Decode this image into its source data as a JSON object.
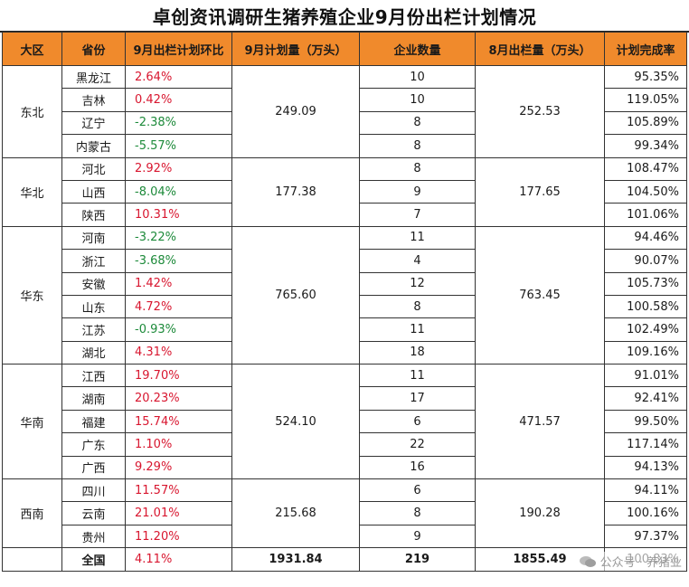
{
  "title": "卓创资讯调研生猪养殖企业9月份出栏计划情况",
  "headers": [
    "大区",
    "省份",
    "9月出栏计划环比",
    "9月计划量（万头）",
    "企业数量",
    "8月出栏量（万头）",
    "计划完成率"
  ],
  "regions": [
    {
      "name": "东北",
      "plan": "249.09",
      "aug": "252.53",
      "rows": [
        {
          "province": "黑龙江",
          "mom": "2.64%",
          "dir": "up",
          "count": "10",
          "rate": "95.35%"
        },
        {
          "province": "吉林",
          "mom": "0.42%",
          "dir": "up",
          "count": "10",
          "rate": "119.05%"
        },
        {
          "province": "辽宁",
          "mom": "-2.38%",
          "dir": "down",
          "count": "8",
          "rate": "105.89%"
        },
        {
          "province": "内蒙古",
          "mom": "-5.57%",
          "dir": "down",
          "count": "8",
          "rate": "99.34%"
        }
      ]
    },
    {
      "name": "华北",
      "plan": "177.38",
      "aug": "177.65",
      "rows": [
        {
          "province": "河北",
          "mom": "2.92%",
          "dir": "up",
          "count": "8",
          "rate": "108.47%"
        },
        {
          "province": "山西",
          "mom": "-8.04%",
          "dir": "down",
          "count": "9",
          "rate": "104.50%"
        },
        {
          "province": "陕西",
          "mom": "10.31%",
          "dir": "up",
          "count": "7",
          "rate": "101.06%"
        }
      ]
    },
    {
      "name": "华东",
      "plan": "765.60",
      "aug": "763.45",
      "rows": [
        {
          "province": "河南",
          "mom": "-3.22%",
          "dir": "down",
          "count": "11",
          "rate": "94.46%"
        },
        {
          "province": "浙江",
          "mom": "-3.68%",
          "dir": "down",
          "count": "4",
          "rate": "90.07%"
        },
        {
          "province": "安徽",
          "mom": "1.42%",
          "dir": "up",
          "count": "12",
          "rate": "105.73%"
        },
        {
          "province": "山东",
          "mom": "4.72%",
          "dir": "up",
          "count": "8",
          "rate": "100.58%"
        },
        {
          "province": "江苏",
          "mom": "-0.93%",
          "dir": "down",
          "count": "11",
          "rate": "102.49%"
        },
        {
          "province": "湖北",
          "mom": "4.31%",
          "dir": "up",
          "count": "18",
          "rate": "109.16%"
        }
      ]
    },
    {
      "name": "华南",
      "plan": "524.10",
      "aug": "471.57",
      "rows": [
        {
          "province": "江西",
          "mom": "19.70%",
          "dir": "up",
          "count": "11",
          "rate": "91.01%"
        },
        {
          "province": "湖南",
          "mom": "20.23%",
          "dir": "up",
          "count": "17",
          "rate": "92.41%"
        },
        {
          "province": "福建",
          "mom": "15.74%",
          "dir": "up",
          "count": "6",
          "rate": "99.50%"
        },
        {
          "province": "广东",
          "mom": "1.10%",
          "dir": "up",
          "count": "22",
          "rate": "117.14%"
        },
        {
          "province": "广西",
          "mom": "9.29%",
          "dir": "up",
          "count": "16",
          "rate": "94.13%"
        }
      ]
    },
    {
      "name": "西南",
      "plan": "215.68",
      "aug": "190.28",
      "rows": [
        {
          "province": "四川",
          "mom": "11.57%",
          "dir": "up",
          "count": "6",
          "rate": "94.11%"
        },
        {
          "province": "云南",
          "mom": "21.01%",
          "dir": "up",
          "count": "8",
          "rate": "100.16%"
        },
        {
          "province": "贵州",
          "mom": "11.20%",
          "dir": "up",
          "count": "9",
          "rate": "97.37%"
        }
      ]
    }
  ],
  "total": {
    "label": "全国",
    "mom": "4.11%",
    "dir": "up",
    "plan": "1931.84",
    "count": "219",
    "aug": "1855.49",
    "rate": "100.83%"
  },
  "watermark": "公众号 · 养猪业",
  "colors": {
    "header_bg": "#f08a2c",
    "up": "#d8162f",
    "down": "#1d8a3a"
  }
}
